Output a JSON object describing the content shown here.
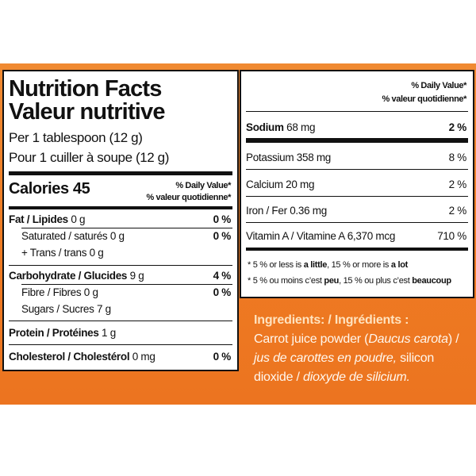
{
  "left": {
    "title": "Nutrition Facts",
    "title_fr": "Valeur nutritive",
    "serving": "Per 1 tablespoon (12 g)",
    "serving_fr": "Pour 1 cuiller à soupe (12 g)",
    "calories": "Calories 45",
    "dv_header": "% Daily Value*",
    "dv_header_fr": "% valeur quotidienne*",
    "rows": [
      {
        "label": "Fat / Lipides",
        "amount": "0 g",
        "dv": "0 %"
      },
      {
        "label": "Saturated / saturés",
        "amount": "0 g",
        "dv": "0 %"
      },
      {
        "label": "+ Trans / trans",
        "amount": "0 g"
      },
      {
        "label": "Carbohydrate / Glucides",
        "amount": "9 g",
        "dv": "4 %"
      },
      {
        "label": "Fibre / Fibres",
        "amount": "0 g",
        "dv": "0 %"
      },
      {
        "label": "Sugars / Sucres",
        "amount": "7 g"
      },
      {
        "label": "Protein / Protéines",
        "amount": "1 g"
      },
      {
        "label": "Cholesterol / Cholestérol",
        "amount": "0 mg",
        "dv": "0 %"
      }
    ]
  },
  "right": {
    "dv_header": "% Daily Value*",
    "dv_header_fr": "% valeur quotidienne*",
    "rows": [
      {
        "label": "Sodium",
        "amount": "68 mg",
        "dv": "2 %"
      },
      {
        "label": "Potassium",
        "amount": "358 mg",
        "dv": "8 %"
      },
      {
        "label": "Calcium",
        "amount": "20 mg",
        "dv": "2 %"
      },
      {
        "label": "Iron / Fer",
        "amount": "0.36 mg",
        "dv": "2 %"
      },
      {
        "label": "Vitamin A / Vitamine A",
        "amount": "6,370 mcg",
        "dv": "710 %"
      }
    ],
    "footnote_en": [
      "* 5 % or less is ",
      "a little",
      ", 15 % or more is ",
      "a lot"
    ],
    "footnote_fr": [
      "* 5 % ou moins c’est ",
      "peu",
      ", 15 % ou plus c’est ",
      "beaucoup"
    ]
  },
  "ingredients": {
    "heading": "Ingredients: / Ingrédients :",
    "parts": [
      "Carrot juice powder (",
      "Daucus carota",
      ") / ",
      "jus de carottes en poudre,",
      "silicon dioxide / ",
      "dioxyde de silicium."
    ]
  }
}
